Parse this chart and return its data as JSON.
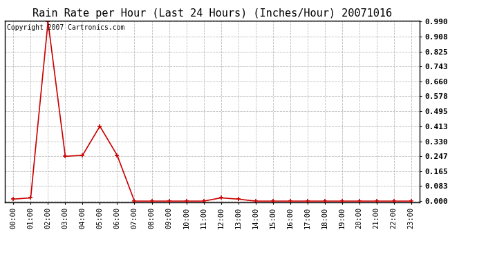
{
  "title": "Rain Rate per Hour (Last 24 Hours) (Inches/Hour) 20071016",
  "copyright_text": "Copyright 2007 Cartronics.com",
  "x_labels": [
    "00:00",
    "01:00",
    "02:00",
    "03:00",
    "04:00",
    "05:00",
    "06:00",
    "07:00",
    "08:00",
    "09:00",
    "10:00",
    "11:00",
    "12:00",
    "13:00",
    "14:00",
    "15:00",
    "16:00",
    "17:00",
    "18:00",
    "19:00",
    "20:00",
    "21:00",
    "22:00",
    "23:00"
  ],
  "y_values": [
    0.011,
    0.018,
    0.99,
    0.247,
    0.253,
    0.413,
    0.253,
    0.0,
    0.0,
    0.0,
    0.0,
    0.0,
    0.018,
    0.011,
    0.0,
    0.0,
    0.0,
    0.0,
    0.0,
    0.0,
    0.0,
    0.0,
    0.0,
    0.0
  ],
  "y_ticks": [
    0.0,
    0.083,
    0.165,
    0.247,
    0.33,
    0.413,
    0.495,
    0.578,
    0.66,
    0.743,
    0.825,
    0.908,
    0.99
  ],
  "ylim_min": 0.0,
  "ylim_max": 0.99,
  "line_color": "#cc0000",
  "marker": "+",
  "marker_size": 5,
  "marker_lw": 1.2,
  "line_width": 1.2,
  "grid_color": "#bbbbbb",
  "background_color": "#ffffff",
  "title_fontsize": 11,
  "copyright_fontsize": 7,
  "tick_fontsize": 7.5,
  "ytick_fontsize": 8,
  "fig_width": 6.9,
  "fig_height": 3.75,
  "dpi": 100
}
